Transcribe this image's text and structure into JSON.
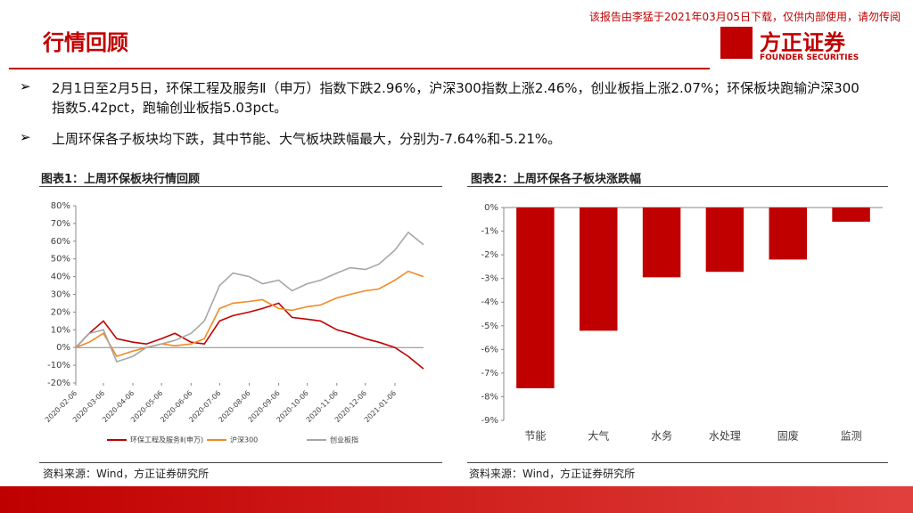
{
  "header": {
    "title": "行情回顾",
    "watermark": "该报告由李猛于2021年03月05日下载，仅供内部使用，请勿传阅",
    "logo": "方正证券",
    "logo_en": "FOUNDER SECURITIES"
  },
  "bullets": [
    "2月1日至2月5日，环保工程及服务Ⅱ（申万）指数下跌2.96%，沪深300指数上涨2.46%，创业板指上涨2.07%；环保板块跑输沪深300指数5.42pct，跑输创业板指5.03pct。",
    "上周环保各子板块均下跌，其中节能、大气板块跌幅最大，分别为-7.64%和-5.21%。"
  ],
  "sources": [
    "资料来源：Wind，方正证券研究所",
    "资料来源：Wind，方正证券研究所"
  ],
  "chart_data": [
    {
      "type": "line",
      "title": "图表1：上周环保板块行情回顾",
      "x": [
        "2020-02-06",
        "2020-02-20",
        "2020-03-06",
        "2020-03-20",
        "2020-04-06",
        "2020-04-20",
        "2020-05-06",
        "2020-05-20",
        "2020-06-06",
        "2020-06-20",
        "2020-07-06",
        "2020-07-20",
        "2020-08-06",
        "2020-08-20",
        "2020-09-06",
        "2020-09-20",
        "2020-10-06",
        "2020-10-20",
        "2020-11-06",
        "2020-11-20",
        "2020-12-06",
        "2020-12-20",
        "2021-01-06",
        "2021-01-20",
        "2021-02-05"
      ],
      "xlim": [
        "2020-02-06",
        "2021-02-05"
      ],
      "xticks": [
        "2020-02-06",
        "2020-03-06",
        "2020-04-06",
        "2020-05-06",
        "2020-06-06",
        "2020-07-06",
        "2020-08-06",
        "2020-09-06",
        "2020-10-06",
        "2020-11-06",
        "2020-12-06",
        "2021-01-06"
      ],
      "ylim": [
        -20,
        80
      ],
      "yticks": [
        {
          "value": -20,
          "label": "-20%"
        },
        {
          "value": -10,
          "label": "-10%"
        },
        {
          "value": 0,
          "label": "0%"
        },
        {
          "value": 10,
          "label": "10%"
        },
        {
          "value": 20,
          "label": "20%"
        },
        {
          "value": 30,
          "label": "30%"
        },
        {
          "value": 40,
          "label": "40%"
        },
        {
          "value": 50,
          "label": "50%"
        },
        {
          "value": 60,
          "label": "60%"
        },
        {
          "value": 70,
          "label": "70%"
        },
        {
          "value": 80,
          "label": "80%"
        }
      ],
      "grid": false,
      "series": [
        {
          "name": "环保工程及服务Ⅱ(申万)",
          "color": "#c00000",
          "values": [
            0,
            8,
            15,
            5,
            3,
            2,
            5,
            8,
            3,
            2,
            15,
            18,
            20,
            22,
            25,
            17,
            16,
            15,
            10,
            8,
            5,
            3,
            0,
            -5,
            -12
          ]
        },
        {
          "name": "沪深300",
          "color": "#f08a24",
          "values": [
            0,
            3,
            8,
            -5,
            -2,
            0,
            2,
            1,
            2,
            5,
            22,
            25,
            26,
            27,
            22,
            21,
            23,
            24,
            28,
            30,
            32,
            33,
            38,
            43,
            40
          ]
        },
        {
          "name": "创业板指",
          "color": "#a6a6a6",
          "values": [
            0,
            8,
            10,
            -8,
            -5,
            0,
            2,
            4,
            8,
            15,
            35,
            42,
            40,
            36,
            38,
            32,
            36,
            38,
            42,
            45,
            44,
            47,
            55,
            65,
            58
          ]
        }
      ]
    },
    {
      "type": "bar",
      "title": "图表2：上周环保各子板块涨跌幅",
      "categories": [
        "节能",
        "大气",
        "水务",
        "水处理",
        "固废",
        "监测"
      ],
      "values": [
        -7.64,
        -5.21,
        -2.95,
        -2.72,
        -2.2,
        -0.6
      ],
      "color": "#c00000",
      "ylim": [
        -9,
        0
      ],
      "yticks": [
        {
          "value": 0,
          "label": "0%"
        },
        {
          "value": -1,
          "label": "-1%"
        },
        {
          "value": -2,
          "label": "-2%"
        },
        {
          "value": -3,
          "label": "-3%"
        },
        {
          "value": -4,
          "label": "-4%"
        },
        {
          "value": -5,
          "label": "-5%"
        },
        {
          "value": -6,
          "label": "-6%"
        },
        {
          "value": -7,
          "label": "-7%"
        },
        {
          "value": -8,
          "label": "-8%"
        },
        {
          "value": -9,
          "label": "-9%"
        }
      ],
      "grid": false
    }
  ]
}
